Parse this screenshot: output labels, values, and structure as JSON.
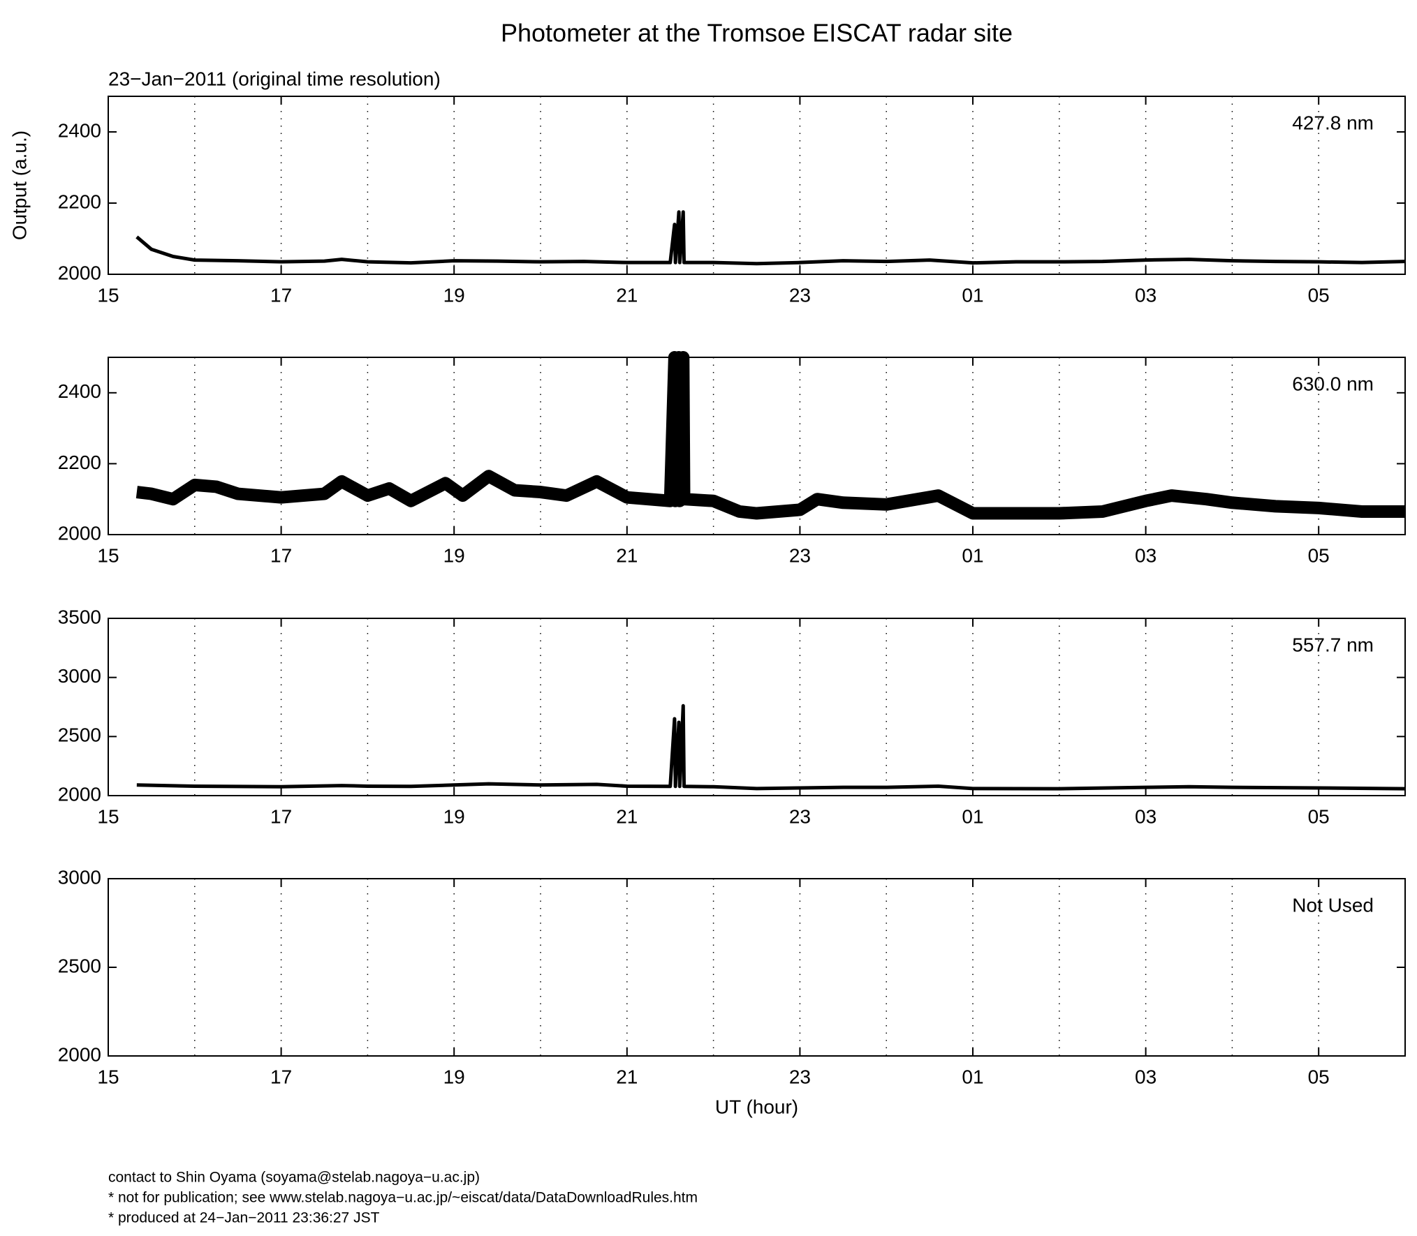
{
  "chart_data": [
    {
      "type": "line",
      "title": "Photometer at the Tromsoe EISCAT radar site",
      "subtitle": "23−Jan−2011 (original time resolution)",
      "ylabel": "Output (a.u.)",
      "x": [
        15.33,
        15.5,
        15.75,
        16,
        16.5,
        17,
        17.5,
        17.7,
        18,
        18.5,
        19,
        19.5,
        20,
        20.5,
        21,
        21.5,
        21.55,
        21.56,
        21.6,
        21.61,
        21.65,
        21.66,
        22,
        22.5,
        23,
        23.5,
        24,
        24.5,
        25,
        25.5,
        26,
        26.5,
        27,
        27.5,
        28,
        28.5,
        29,
        29.5,
        30
      ],
      "series": [
        {
          "name": "427.8 nm",
          "color": "#000000",
          "values": [
            2105,
            2070,
            2050,
            2040,
            2038,
            2035,
            2037,
            2042,
            2035,
            2032,
            2038,
            2037,
            2035,
            2036,
            2033,
            2033,
            2140,
            2033,
            2175,
            2033,
            2175,
            2033,
            2033,
            2030,
            2033,
            2038,
            2036,
            2040,
            2032,
            2035,
            2035,
            2036,
            2040,
            2042,
            2038,
            2036,
            2035,
            2033,
            2036
          ]
        }
      ],
      "xlim": [
        15,
        30
      ],
      "xticks": [
        15,
        17,
        19,
        21,
        23,
        {
          "value": 25,
          "label": "01"
        },
        {
          "value": 27,
          "label": "03"
        },
        {
          "value": 29,
          "label": "05"
        }
      ],
      "xgrid": [
        16,
        17,
        18,
        19,
        20,
        21,
        22,
        23,
        24,
        25,
        26,
        27,
        28,
        29
      ],
      "ylim": [
        2000,
        2500
      ],
      "yticks": [
        2000,
        2200,
        2400
      ]
    },
    {
      "type": "line",
      "x": [
        15.33,
        15.5,
        15.75,
        16,
        16.25,
        16.5,
        17,
        17.5,
        17.7,
        18,
        18.25,
        18.5,
        18.9,
        19.1,
        19.4,
        19.7,
        20,
        20.3,
        20.65,
        21,
        21.5,
        21.55,
        21.56,
        21.6,
        21.61,
        21.65,
        21.66,
        22,
        22.3,
        22.5,
        23,
        23.2,
        23.5,
        24,
        24.6,
        25,
        25.5,
        26,
        26.5,
        27,
        27.3,
        27.7,
        28,
        28.5,
        29,
        29.5,
        30
      ],
      "series": [
        {
          "name": "630.0 nm",
          "color": "#000000",
          "values": [
            2120,
            2115,
            2100,
            2140,
            2135,
            2115,
            2105,
            2115,
            2150,
            2110,
            2130,
            2095,
            2145,
            2110,
            2165,
            2125,
            2120,
            2110,
            2150,
            2105,
            2095,
            2500,
            2095,
            2500,
            2095,
            2500,
            2100,
            2095,
            2065,
            2060,
            2070,
            2100,
            2090,
            2085,
            2110,
            2060,
            2060,
            2060,
            2065,
            2095,
            2110,
            2100,
            2090,
            2080,
            2075,
            2065,
            2065
          ]
        }
      ],
      "xlim": [
        15,
        30
      ],
      "xticks": [
        15,
        17,
        19,
        21,
        23,
        {
          "value": 25,
          "label": "01"
        },
        {
          "value": 27,
          "label": "03"
        },
        {
          "value": 29,
          "label": "05"
        }
      ],
      "xgrid": [
        16,
        17,
        18,
        19,
        20,
        21,
        22,
        23,
        24,
        25,
        26,
        27,
        28,
        29
      ],
      "ylim": [
        2000,
        2500
      ],
      "yticks": [
        2000,
        2200,
        2400
      ]
    },
    {
      "type": "line",
      "x": [
        15.33,
        16,
        17,
        17.7,
        18,
        18.5,
        19,
        19.4,
        20,
        20.65,
        21,
        21.5,
        21.55,
        21.56,
        21.6,
        21.61,
        21.65,
        21.66,
        22,
        22.5,
        23,
        23.5,
        24,
        24.6,
        25,
        26,
        27,
        27.5,
        28,
        29,
        30
      ],
      "series": [
        {
          "name": "557.7 nm",
          "color": "#000000",
          "values": [
            2090,
            2080,
            2075,
            2085,
            2080,
            2078,
            2090,
            2100,
            2090,
            2095,
            2080,
            2078,
            2650,
            2078,
            2620,
            2078,
            2760,
            2078,
            2075,
            2060,
            2065,
            2070,
            2070,
            2080,
            2060,
            2058,
            2070,
            2075,
            2070,
            2065,
            2058
          ]
        }
      ],
      "xlim": [
        15,
        30
      ],
      "xticks": [
        15,
        17,
        19,
        21,
        23,
        {
          "value": 25,
          "label": "01"
        },
        {
          "value": 27,
          "label": "03"
        },
        {
          "value": 29,
          "label": "05"
        }
      ],
      "xgrid": [
        16,
        17,
        18,
        19,
        20,
        21,
        22,
        23,
        24,
        25,
        26,
        27,
        28,
        29
      ],
      "ylim": [
        2000,
        3500
      ],
      "yticks": [
        2000,
        2500,
        3000,
        3500
      ]
    },
    {
      "type": "line",
      "xlabel": "UT (hour)",
      "x": [],
      "series": [
        {
          "name": "Not Used",
          "color": "#000000",
          "values": []
        }
      ],
      "xlim": [
        15,
        30
      ],
      "xticks": [
        15,
        17,
        19,
        21,
        23,
        {
          "value": 25,
          "label": "01"
        },
        {
          "value": 27,
          "label": "03"
        },
        {
          "value": 29,
          "label": "05"
        }
      ],
      "xgrid": [
        16,
        17,
        18,
        19,
        20,
        21,
        22,
        23,
        24,
        25,
        26,
        27,
        28,
        29
      ],
      "ylim": [
        2000,
        3000
      ],
      "yticks": [
        2000,
        2500,
        3000
      ]
    }
  ],
  "footer": [
    "contact to Shin Oyama (soyama@stelab.nagoya−u.ac.jp)",
    "* not for publication; see www.stelab.nagoya−u.ac.jp/~eiscat/data/DataDownloadRules.htm",
    "* produced at 24−Jan−2011 23:36:27 JST"
  ]
}
